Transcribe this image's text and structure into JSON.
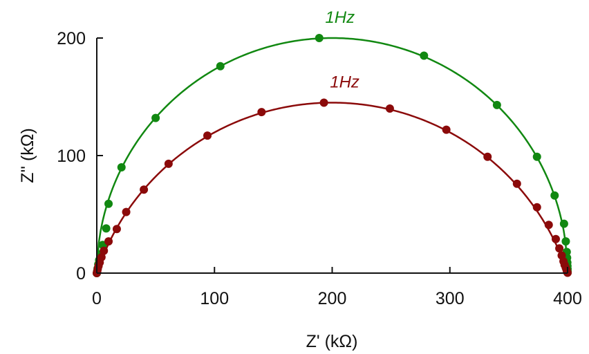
{
  "chart_data": {
    "type": "scatter",
    "title": "",
    "xlabel": "Z' (kΩ)",
    "ylabel": "Z'' (kΩ)",
    "xlim": [
      0,
      400
    ],
    "ylim": [
      0,
      200
    ],
    "xticks": [
      0,
      100,
      200,
      300,
      400
    ],
    "yticks": [
      0,
      100,
      200
    ],
    "grid": false,
    "legend": "none",
    "series": [
      {
        "color": "#118811",
        "fit": {
          "shape": "semicircle",
          "R_inf": 0,
          "R_total": 400,
          "peak": 200
        },
        "points": [
          [
            0,
            0
          ],
          [
            0.3,
            1.5
          ],
          [
            0.7,
            4
          ],
          [
            1.3,
            7.5
          ],
          [
            2,
            11
          ],
          [
            3.3,
            16
          ],
          [
            5,
            24
          ],
          [
            8,
            38
          ],
          [
            10,
            59
          ],
          [
            21,
            90
          ],
          [
            50,
            132
          ],
          [
            105,
            176
          ],
          [
            189,
            200
          ],
          [
            278,
            185
          ],
          [
            340,
            143
          ],
          [
            374,
            99
          ],
          [
            389,
            66
          ],
          [
            397,
            42
          ],
          [
            398.5,
            27
          ],
          [
            399.3,
            18
          ],
          [
            399.6,
            13
          ],
          [
            399.8,
            9
          ],
          [
            399.9,
            6
          ],
          [
            400,
            3.5
          ],
          [
            400,
            1.5
          ],
          [
            400,
            0.5
          ]
        ],
        "annotation": {
          "text": "1Hz",
          "x": 189,
          "y": 200
        }
      },
      {
        "color": "#8b0a0a",
        "fit": {
          "shape": "arc",
          "R_inf": 0,
          "R_total": 400,
          "peak": 145
        },
        "points": [
          [
            0,
            0
          ],
          [
            0.4,
            1.5
          ],
          [
            0.8,
            3.5
          ],
          [
            1.5,
            6
          ],
          [
            2.5,
            9
          ],
          [
            4,
            13.5
          ],
          [
            6,
            19
          ],
          [
            10,
            27
          ],
          [
            17,
            37.5
          ],
          [
            25,
            52
          ],
          [
            40,
            71
          ],
          [
            61,
            93
          ],
          [
            94,
            117
          ],
          [
            140,
            137
          ],
          [
            193,
            145
          ],
          [
            249,
            140
          ],
          [
            297,
            122
          ],
          [
            332,
            99
          ],
          [
            357,
            76
          ],
          [
            374,
            56
          ],
          [
            384,
            41
          ],
          [
            390,
            29
          ],
          [
            393,
            21
          ],
          [
            395,
            15
          ],
          [
            396.5,
            10
          ],
          [
            397.5,
            7
          ],
          [
            398.5,
            4.5
          ],
          [
            399.2,
            2.5
          ],
          [
            399.6,
            1
          ],
          [
            400,
            0.3
          ]
        ],
        "annotation": {
          "text": "1Hz",
          "x": 193,
          "y": 145
        }
      }
    ]
  }
}
